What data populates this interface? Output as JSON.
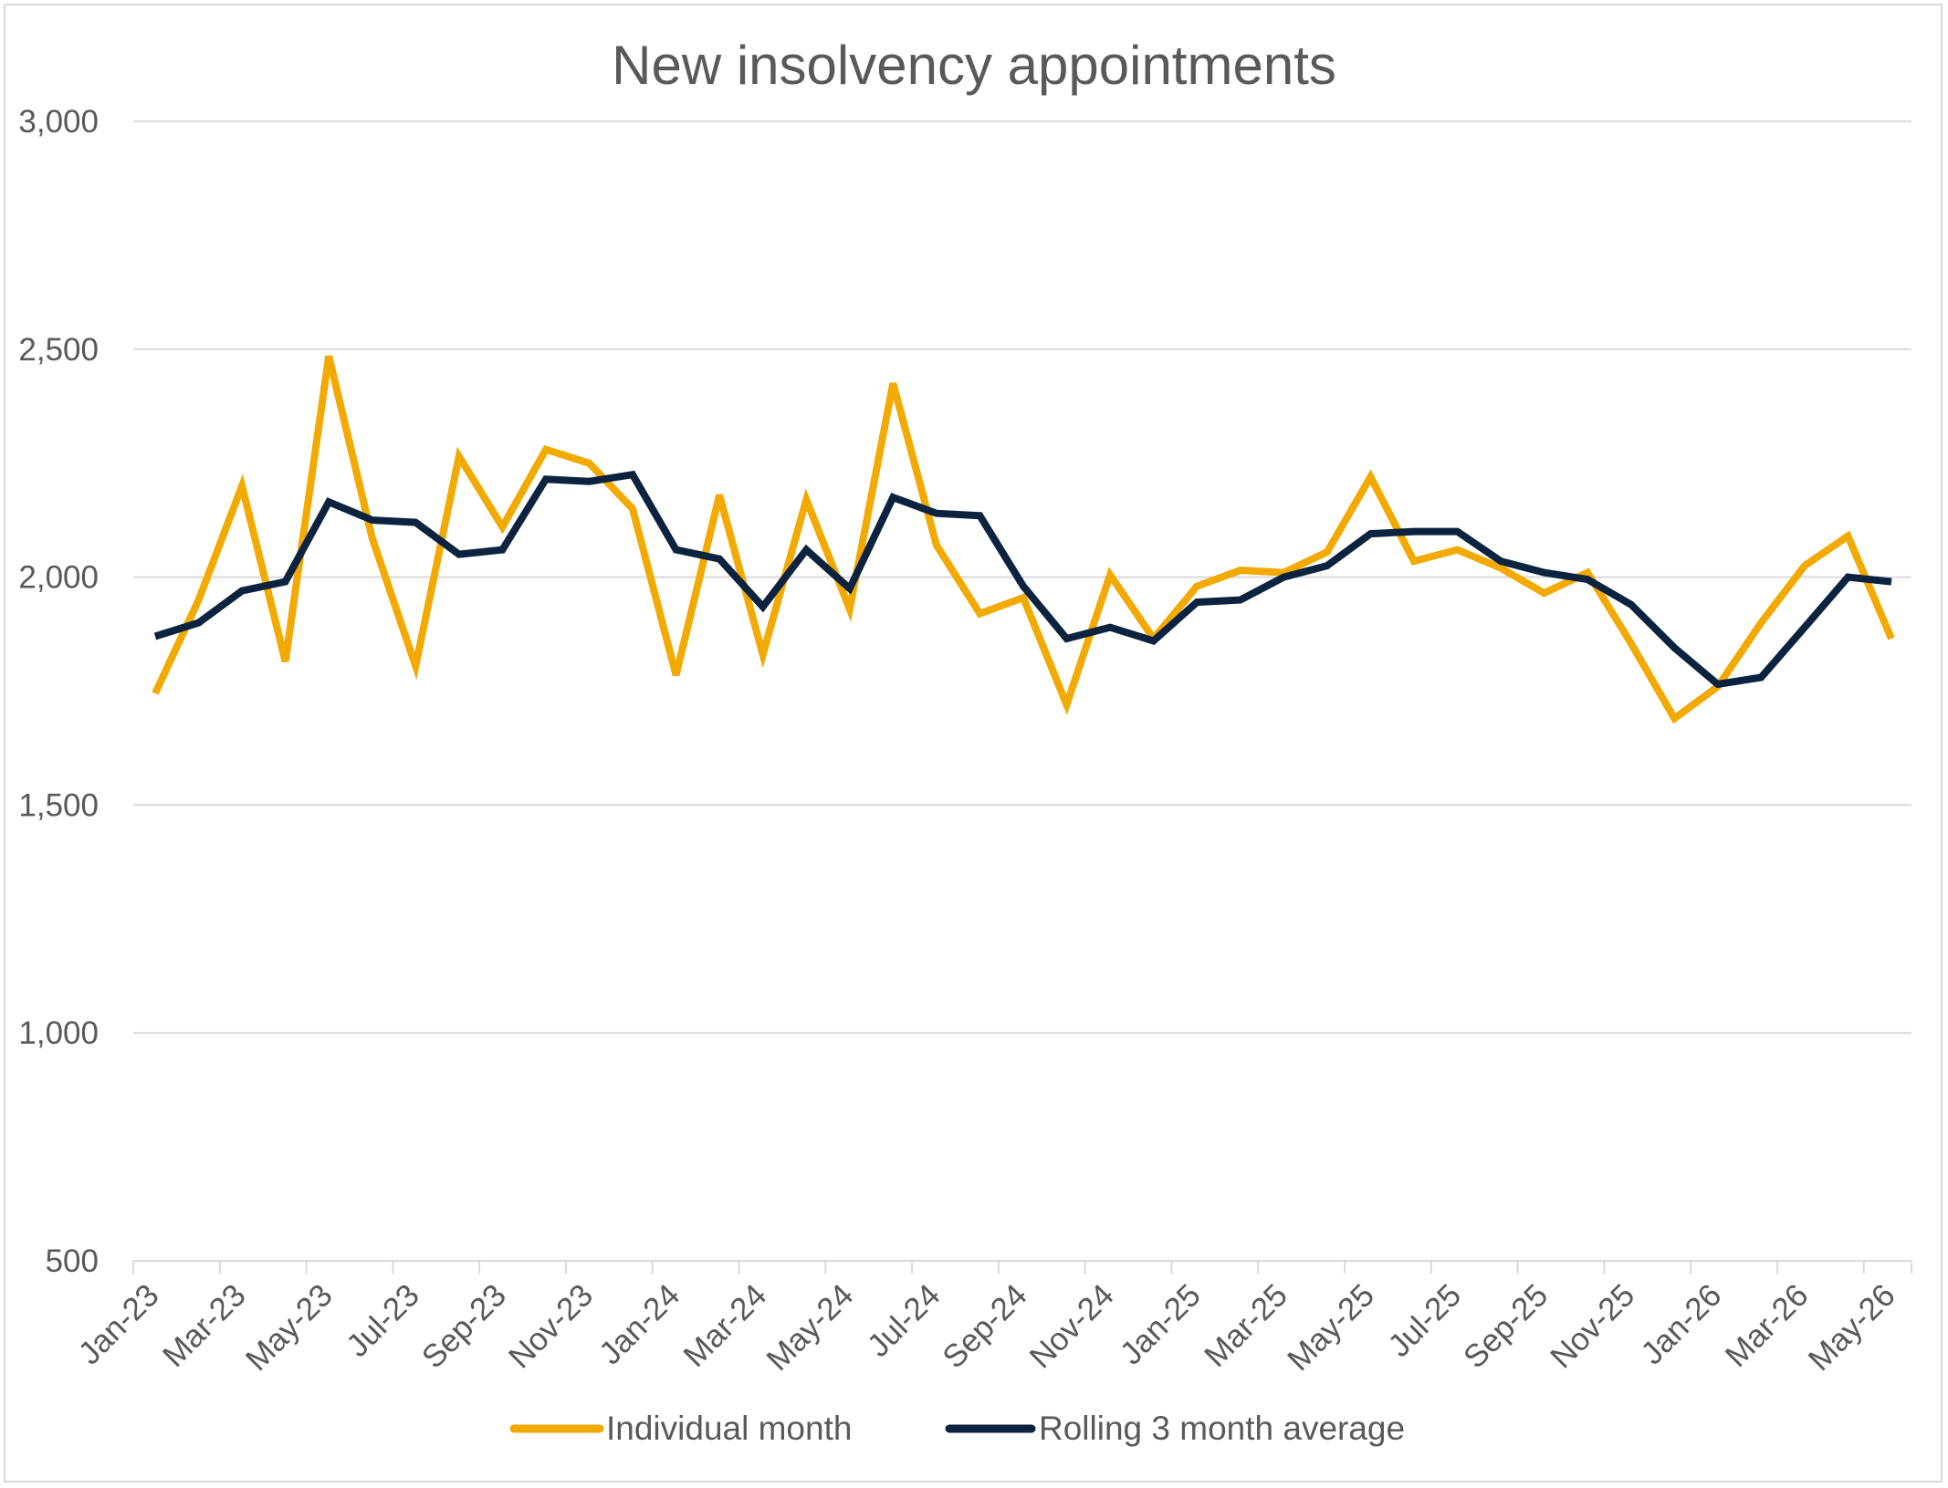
{
  "chart_data": {
    "type": "line",
    "title": "New insolvency appointments",
    "xlabel": "",
    "ylabel": "",
    "ylim": [
      500,
      3000
    ],
    "yticks": [
      500,
      1000,
      1500,
      2000,
      2500,
      3000
    ],
    "ytick_labels": [
      "500",
      "1,000",
      "1,500",
      "2,000",
      "2,500",
      "3,000"
    ],
    "x_tick_labels": [
      "Jan-23",
      "Mar-23",
      "May-23",
      "Jul-23",
      "Sep-23",
      "Nov-23",
      "Jan-24",
      "Mar-24",
      "May-24",
      "Jul-24",
      "Sep-24",
      "Nov-24",
      "Jan-25",
      "Mar-25",
      "May-25",
      "Jul-25",
      "Sep-25",
      "Nov-25",
      "Jan-26",
      "Mar-26",
      "May-26"
    ],
    "categories": [
      "Jan-23",
      "Feb-23",
      "Mar-23",
      "Apr-23",
      "May-23",
      "Jun-23",
      "Jul-23",
      "Aug-23",
      "Sep-23",
      "Oct-23",
      "Nov-23",
      "Dec-23",
      "Jan-24",
      "Feb-24",
      "Mar-24",
      "Apr-24",
      "May-24",
      "Jun-24",
      "Jul-24",
      "Aug-24",
      "Sep-24",
      "Oct-24",
      "Nov-24",
      "Dec-24",
      "Jan-25",
      "Feb-25",
      "Mar-25",
      "Apr-25",
      "May-25",
      "Jun-25",
      "Jul-25",
      "Aug-25",
      "Sep-25",
      "Oct-25",
      "Nov-25",
      "Dec-25",
      "Jan-26",
      "Feb-26",
      "Mar-26",
      "Apr-26",
      "May-26"
    ],
    "grid": true,
    "legend_position": "bottom",
    "series": [
      {
        "name": "Individual month",
        "color": "#f2a900",
        "values": [
          1745,
          1950,
          2200,
          1815,
          2485,
          2085,
          1805,
          2265,
          2110,
          2280,
          2250,
          2150,
          1785,
          2180,
          1830,
          2170,
          1930,
          2425,
          2070,
          1920,
          1955,
          1720,
          2005,
          1865,
          1980,
          2015,
          2010,
          2055,
          2220,
          2035,
          2060,
          2020,
          1965,
          2010,
          1855,
          1690,
          1760,
          1900,
          2025,
          2090,
          1865
        ]
      },
      {
        "name": "Rolling 3 month average",
        "color": "#0c2340",
        "values": [
          1870,
          1900,
          1970,
          1990,
          2165,
          2125,
          2120,
          2050,
          2060,
          2215,
          2210,
          2225,
          2060,
          2040,
          1935,
          2060,
          1975,
          2175,
          2140,
          2135,
          1980,
          1865,
          1890,
          1860,
          1945,
          1950,
          2000,
          2025,
          2095,
          2100,
          2100,
          2035,
          2010,
          1995,
          1940,
          1845,
          1765,
          1780,
          1890,
          2000,
          1990
        ]
      }
    ]
  }
}
